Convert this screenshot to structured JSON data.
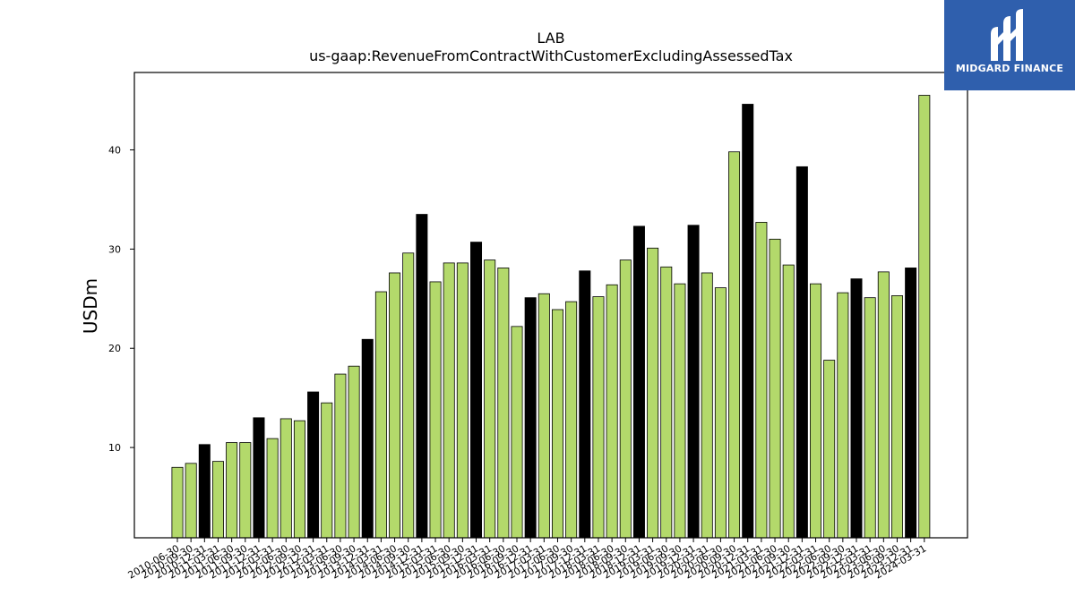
{
  "chart_data": {
    "type": "bar",
    "title": "LAB",
    "subtitle": "us-gaap:RevenueFromContractWithCustomerExcludingAssessedTax",
    "xlabel": "",
    "ylabel": "USDm",
    "ylim": [
      0.9,
      47.8
    ],
    "yticks": [
      10,
      20,
      30,
      40
    ],
    "grid": false,
    "colors": {
      "quarter": "#b3d96b",
      "q4_highlight": "#000000",
      "edge": "#000000"
    },
    "categories": [
      "2010-06-30",
      "2010-09-30",
      "2010-12-31",
      "2011-03-31",
      "2011-06-30",
      "2011-09-30",
      "2011-12-31",
      "2012-03-31",
      "2012-06-30",
      "2012-09-30",
      "2012-12-31",
      "2013-03-31",
      "2013-06-30",
      "2013-09-30",
      "2013-12-31",
      "2014-03-31",
      "2014-06-30",
      "2014-09-30",
      "2014-12-31",
      "2015-03-31",
      "2015-06-30",
      "2015-09-30",
      "2015-12-31",
      "2016-03-31",
      "2016-06-30",
      "2016-09-30",
      "2016-12-31",
      "2017-03-31",
      "2017-06-30",
      "2017-09-30",
      "2017-12-31",
      "2018-03-31",
      "2018-06-30",
      "2018-09-30",
      "2018-12-31",
      "2019-03-31",
      "2019-06-30",
      "2019-09-30",
      "2019-12-31",
      "2020-03-31",
      "2020-06-30",
      "2020-09-30",
      "2020-12-31",
      "2021-03-31",
      "2021-06-30",
      "2021-09-30",
      "2021-12-31",
      "2022-03-31",
      "2022-06-30",
      "2022-09-30",
      "2022-12-31",
      "2023-03-31",
      "2023-06-30",
      "2023-09-30",
      "2023-12-31",
      "2024-03-31"
    ],
    "values": [
      8.0,
      8.4,
      10.3,
      8.6,
      10.5,
      10.5,
      13.0,
      10.9,
      12.9,
      12.7,
      15.6,
      14.5,
      17.4,
      18.2,
      20.9,
      25.7,
      27.6,
      29.6,
      33.5,
      26.7,
      28.6,
      28.6,
      30.7,
      28.9,
      28.1,
      22.2,
      25.1,
      25.5,
      23.9,
      24.7,
      27.8,
      25.2,
      26.4,
      28.9,
      32.3,
      30.1,
      28.2,
      26.5,
      32.4,
      27.6,
      26.1,
      39.8,
      44.6,
      32.7,
      31.0,
      28.4,
      38.3,
      26.5,
      18.8,
      25.6,
      27.0,
      25.1,
      27.7,
      25.3,
      28.1,
      45.5
    ],
    "highlight": [
      false,
      false,
      true,
      false,
      false,
      false,
      true,
      false,
      false,
      false,
      true,
      false,
      false,
      false,
      true,
      false,
      false,
      false,
      true,
      false,
      false,
      false,
      true,
      false,
      false,
      false,
      true,
      false,
      false,
      false,
      true,
      false,
      false,
      false,
      true,
      false,
      false,
      false,
      true,
      false,
      false,
      false,
      true,
      false,
      false,
      false,
      true,
      false,
      false,
      false,
      true,
      false,
      false,
      false,
      true,
      false
    ]
  },
  "logo": {
    "text": "MIDGARD FINANCE"
  }
}
